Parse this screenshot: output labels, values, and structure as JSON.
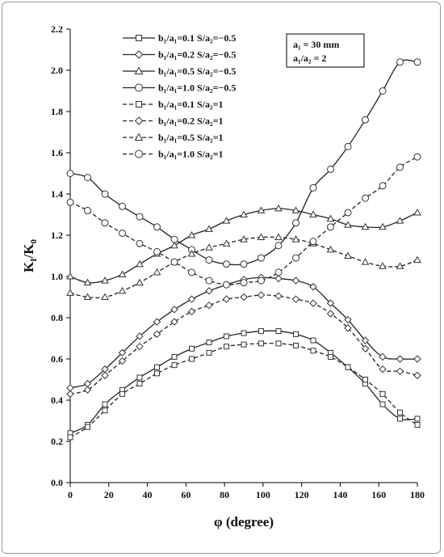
{
  "chart_data": {
    "type": "line",
    "xlabel": "φ (degree)",
    "ylabel_main": "K",
    "ylabel_sub1": "I",
    "ylabel_mid": "/K",
    "ylabel_sub2": "0",
    "xlim": [
      0,
      180
    ],
    "ylim": [
      0,
      2.2
    ],
    "xticks": [
      "0",
      "20",
      "40",
      "60",
      "80",
      "100",
      "120",
      "140",
      "160",
      "180"
    ],
    "yticks": [
      "0.0",
      "0.2",
      "0.4",
      "0.6",
      "0.8",
      "1.0",
      "1.2",
      "1.4",
      "1.6",
      "1.8",
      "2.0",
      "2.2"
    ],
    "grid": false,
    "legend_position": "top-left",
    "annotation": [
      "a₁ = 30 mm",
      "a₁/a₂ = 2"
    ],
    "x": [
      0,
      9,
      18,
      27,
      36,
      45,
      54,
      63,
      72,
      81,
      90,
      99,
      108,
      117,
      126,
      135,
      144,
      153,
      162,
      171,
      180
    ],
    "series": [
      {
        "name": "b₁/a₁=0.1  S/a₂=−0.5",
        "marker": "square",
        "dash": "solid",
        "values": [
          0.24,
          0.28,
          0.38,
          0.45,
          0.51,
          0.56,
          0.61,
          0.65,
          0.68,
          0.71,
          0.725,
          0.735,
          0.735,
          0.72,
          0.69,
          0.63,
          0.56,
          0.48,
          0.38,
          0.31,
          0.31
        ]
      },
      {
        "name": "b₁/a₁=0.2  S/a₂=−0.5",
        "marker": "diamond",
        "dash": "solid",
        "values": [
          0.46,
          0.48,
          0.55,
          0.63,
          0.71,
          0.78,
          0.84,
          0.89,
          0.93,
          0.96,
          0.985,
          0.995,
          0.99,
          0.98,
          0.95,
          0.87,
          0.79,
          0.69,
          0.61,
          0.6,
          0.6
        ]
      },
      {
        "name": "b₁/a₁=0.5  S/a₂=−0.5",
        "marker": "triangle",
        "dash": "solid",
        "values": [
          1.0,
          0.97,
          0.98,
          1.01,
          1.06,
          1.11,
          1.15,
          1.2,
          1.23,
          1.27,
          1.3,
          1.32,
          1.33,
          1.32,
          1.3,
          1.28,
          1.25,
          1.24,
          1.24,
          1.27,
          1.31
        ]
      },
      {
        "name": "b₁/a₁=1.0  S/a₂=−0.5",
        "marker": "circle",
        "dash": "solid",
        "values": [
          1.5,
          1.48,
          1.4,
          1.34,
          1.29,
          1.24,
          1.18,
          1.13,
          1.08,
          1.06,
          1.06,
          1.09,
          1.15,
          1.26,
          1.43,
          1.52,
          1.63,
          1.76,
          1.9,
          2.04,
          2.04
        ]
      },
      {
        "name": "b₁/a₁=0.1  S/a₂=1",
        "marker": "square",
        "dash": "dashed",
        "values": [
          0.22,
          0.27,
          0.35,
          0.43,
          0.48,
          0.53,
          0.57,
          0.6,
          0.63,
          0.66,
          0.67,
          0.675,
          0.675,
          0.665,
          0.64,
          0.61,
          0.56,
          0.5,
          0.43,
          0.34,
          0.28
        ]
      },
      {
        "name": "b₁/a₁=0.2  S/a₂=1",
        "marker": "diamond",
        "dash": "dashed",
        "values": [
          0.43,
          0.45,
          0.52,
          0.59,
          0.66,
          0.72,
          0.78,
          0.83,
          0.86,
          0.89,
          0.9,
          0.91,
          0.905,
          0.89,
          0.87,
          0.82,
          0.75,
          0.65,
          0.55,
          0.54,
          0.52
        ]
      },
      {
        "name": "b₁/a₁=0.5  S/a₂=1",
        "marker": "triangle",
        "dash": "dashed",
        "values": [
          0.92,
          0.9,
          0.9,
          0.93,
          0.97,
          1.02,
          1.07,
          1.11,
          1.14,
          1.16,
          1.18,
          1.19,
          1.19,
          1.18,
          1.16,
          1.13,
          1.1,
          1.07,
          1.05,
          1.05,
          1.08
        ]
      },
      {
        "name": "b₁/a₁=1.0  S/a₂=1",
        "marker": "circle",
        "dash": "dashed",
        "values": [
          1.36,
          1.32,
          1.26,
          1.21,
          1.16,
          1.12,
          1.07,
          1.02,
          0.98,
          0.96,
          0.97,
          0.98,
          1.02,
          1.09,
          1.17,
          1.24,
          1.31,
          1.38,
          1.44,
          1.53,
          1.58
        ]
      }
    ]
  }
}
